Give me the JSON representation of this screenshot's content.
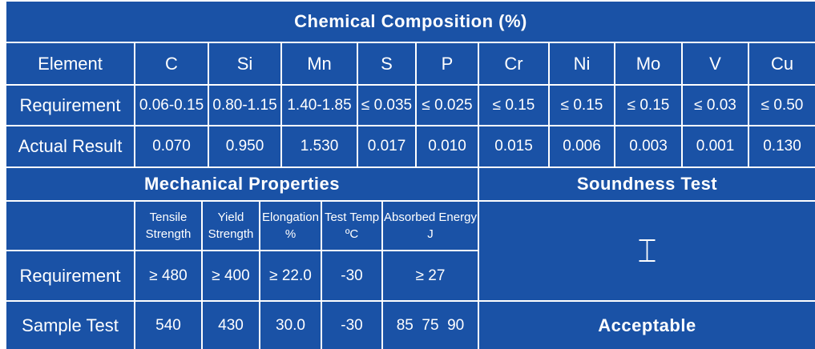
{
  "chemical": {
    "title": "Chemical Composition (%)",
    "element_label": "Element",
    "requirement_label": "Requirement",
    "actual_label": "Actual Result",
    "elements": [
      "C",
      "Si",
      "Mn",
      "S",
      "P",
      "Cr",
      "Ni",
      "Mo",
      "V",
      "Cu"
    ],
    "requirement": [
      "0.06-0.15",
      "0.80-1.15",
      "1.40-1.85",
      "≤ 0.035",
      "≤ 0.025",
      "≤ 0.15",
      "≤ 0.15",
      "≤ 0.15",
      "≤ 0.03",
      "≤ 0.50"
    ],
    "actual": [
      "0.070",
      "0.950",
      "1.530",
      "0.017",
      "0.010",
      "0.015",
      "0.006",
      "0.003",
      "0.001",
      "0.130"
    ]
  },
  "mechanical": {
    "title": "Mechanical Properties",
    "headers": [
      {
        "line1": "Tensile",
        "line2": "Strength"
      },
      {
        "line1": "Yield",
        "line2": "Strength"
      },
      {
        "line1": "Elongation",
        "line2": "%"
      },
      {
        "line1": "Test Temp",
        "line2": "ºC"
      },
      {
        "line1": "Absorbed Energy",
        "line2": "J"
      }
    ],
    "requirement_label": "Requirement",
    "requirement": [
      "≥ 480",
      "≥ 400",
      "≥ 22.0",
      "-30",
      "≥ 27"
    ],
    "sample_label": "Sample Test",
    "sample": [
      "540",
      "430",
      "30.0",
      "-30",
      "85  75  90"
    ]
  },
  "soundness": {
    "title": "Soundness Test",
    "result": "Acceptable"
  }
}
